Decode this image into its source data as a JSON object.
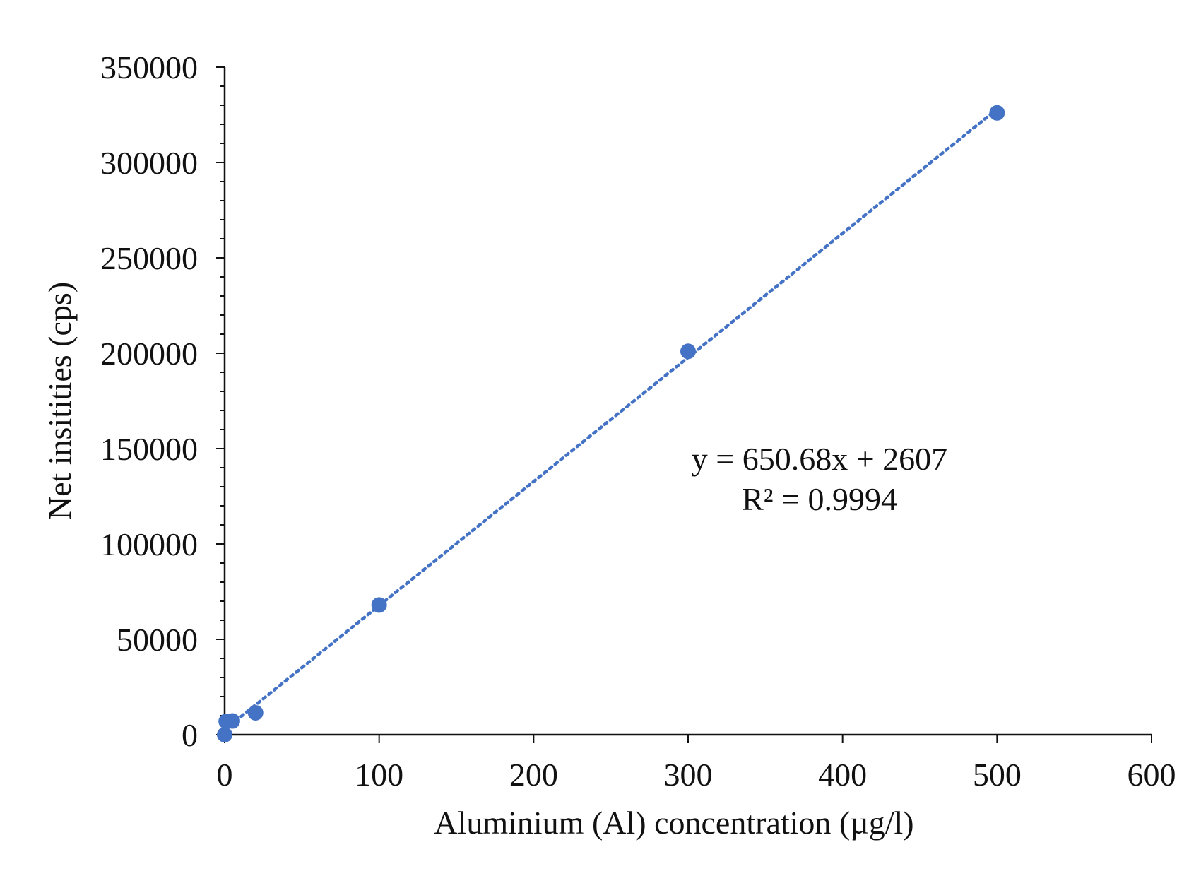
{
  "chart_data": {
    "type": "scatter",
    "title": "",
    "xlabel": "Aluminium (Al) concentration (µg/l)",
    "ylabel": "Net insitities (cps)",
    "xlim": [
      0,
      600
    ],
    "ylim": [
      0,
      350000
    ],
    "x_ticks": [
      0,
      100,
      200,
      300,
      400,
      500,
      600
    ],
    "y_ticks": [
      0,
      50000,
      100000,
      150000,
      200000,
      250000,
      300000,
      350000
    ],
    "y_minor_step": 10000,
    "grid": false,
    "legend": "none",
    "series": [
      {
        "marker_color": "#4472C4",
        "points": [
          {
            "x": 0,
            "y": 0
          },
          {
            "x": 1,
            "y": 7000
          },
          {
            "x": 5,
            "y": 7200
          },
          {
            "x": 20,
            "y": 11500
          },
          {
            "x": 100,
            "y": 68000
          },
          {
            "x": 300,
            "y": 201000
          },
          {
            "x": 500,
            "y": 326000
          }
        ]
      }
    ],
    "trendline": {
      "type": "linear",
      "slope": 650.68,
      "intercept": 2607,
      "style": "dotted",
      "color": "#4472C4",
      "equation_text": "y = 650.68x + 2607",
      "r2_text": "R² = 0.9994"
    }
  }
}
